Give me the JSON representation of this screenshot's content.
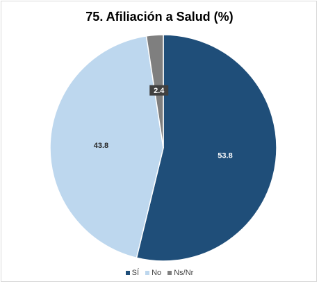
{
  "chart_data": {
    "type": "pie",
    "title": "75. Afiliación a Salud (%)",
    "categories": [
      "SÍ",
      "No",
      "Ns/Nr"
    ],
    "values": [
      53.8,
      43.8,
      2.4
    ],
    "data_labels": [
      "53.8",
      "43.8",
      "2.4"
    ],
    "colors": [
      "#1f4e79",
      "#bdd7ee",
      "#7f7f7f"
    ],
    "label_colors": [
      "#ffffff",
      "#262626",
      "#ffffff"
    ],
    "legend_position": "bottom",
    "start_angle_deg": 0,
    "direction": "clockwise"
  }
}
